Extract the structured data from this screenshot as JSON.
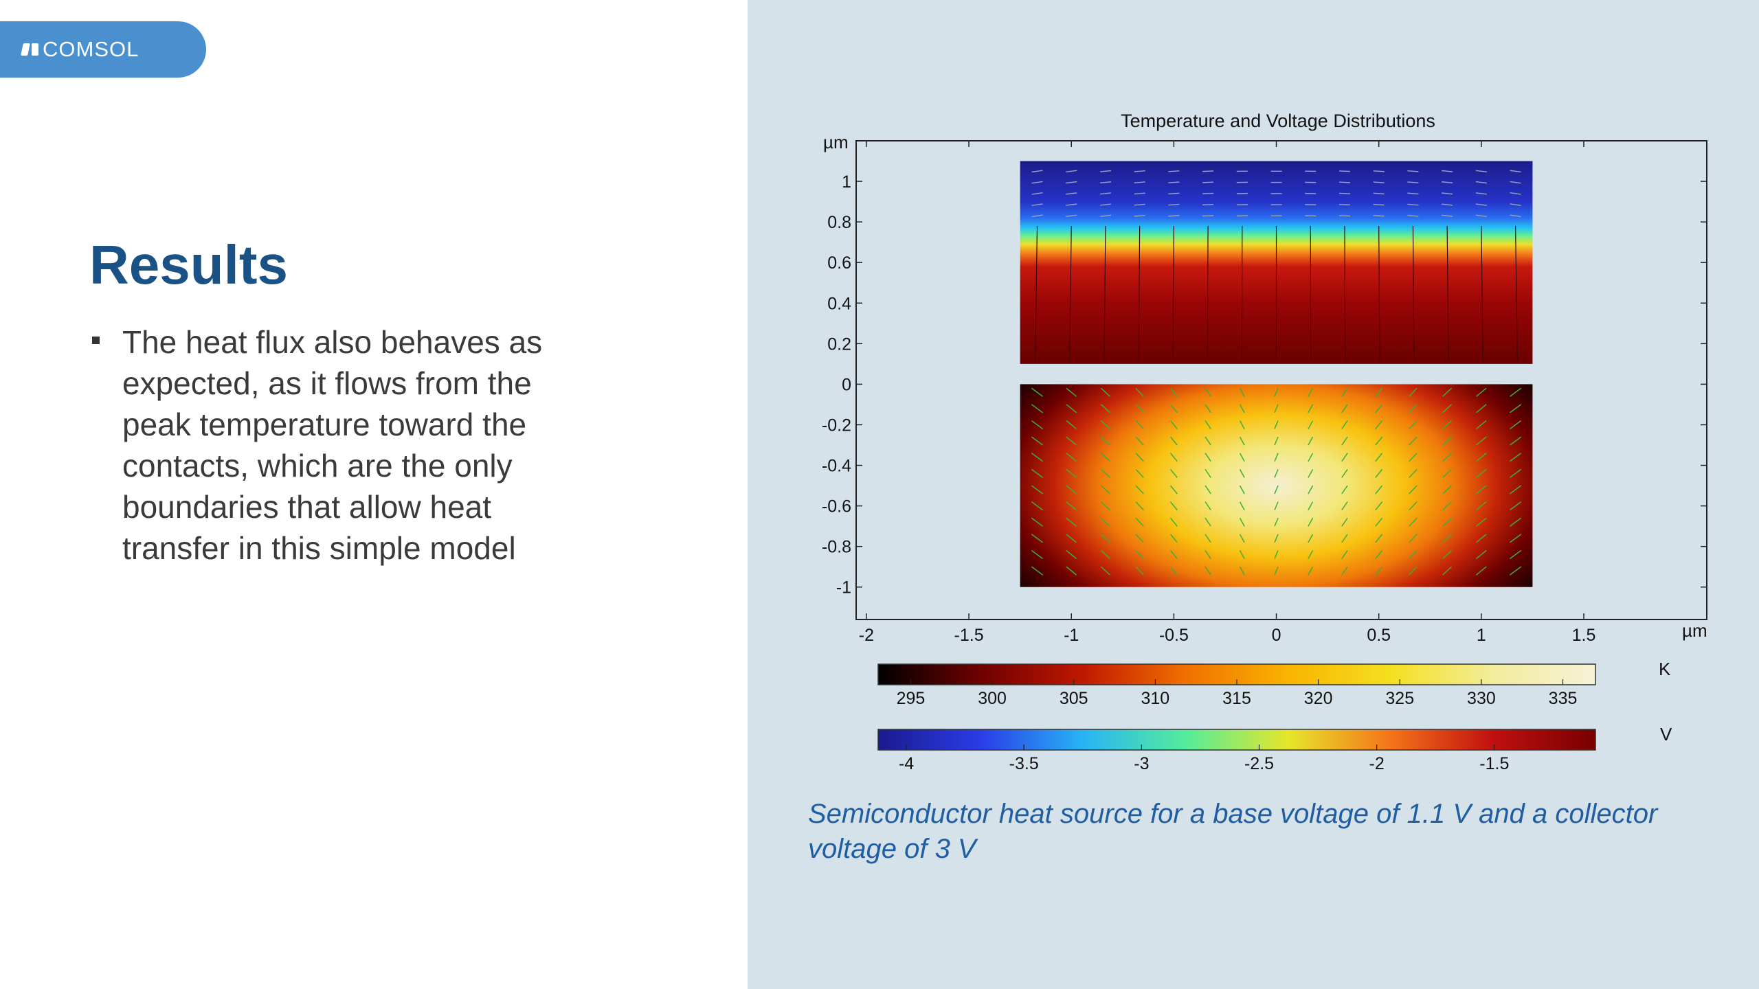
{
  "logo": {
    "text": "COMSOL"
  },
  "slide": {
    "title": "Results",
    "bullets": [
      "The heat flux also behaves as expected, as it flows from the peak temperature toward the contacts, which are the only boundaries that allow heat transfer in this simple model"
    ],
    "caption": "Semiconductor heat source for a base voltage of 1.1 V and a collector voltage of 3 V"
  },
  "plot": {
    "title": "Temperature and Voltage Distributions",
    "x_unit": "µm",
    "y_unit": "µm",
    "x_ticks": [
      "-2",
      "-1.5",
      "-1",
      "-0.5",
      "0",
      "0.5",
      "1",
      "1.5"
    ],
    "y_ticks": [
      "1",
      "0.8",
      "0.6",
      "0.4",
      "0.2",
      "0",
      "-0.2",
      "-0.4",
      "-0.6",
      "-0.8",
      "-1"
    ],
    "xlim": [
      -2.05,
      2.1
    ],
    "ylim": [
      -1.16,
      1.2
    ],
    "upper_domain": {
      "x": [
        -1.25,
        1.25
      ],
      "y": [
        0.1,
        1.1
      ],
      "field": "voltage"
    },
    "lower_domain": {
      "x": [
        -1.25,
        1.25
      ],
      "y": [
        -1.0,
        0.0
      ],
      "field": "temperature"
    },
    "temperature_legend": {
      "unit": "K",
      "ticks": [
        "295",
        "300",
        "305",
        "310",
        "315",
        "320",
        "325",
        "330",
        "335"
      ],
      "tick_values": [
        295,
        300,
        305,
        310,
        315,
        320,
        325,
        330,
        335
      ],
      "range": [
        293,
        337
      ],
      "colors": [
        "#000000",
        "#6e0000",
        "#c01800",
        "#f07000",
        "#f9b400",
        "#f4e020",
        "#f2ec9c",
        "#f6f2d8"
      ]
    },
    "voltage_legend": {
      "unit": "V",
      "ticks": [
        "-4",
        "-3.5",
        "-3",
        "-2.5",
        "-2",
        "-1.5"
      ],
      "tick_values": [
        -4,
        -3.5,
        -3,
        -2.5,
        -2,
        -1.5
      ],
      "range": [
        -4.12,
        -1.07
      ],
      "colors": [
        "#1a1a8e",
        "#2a3ce8",
        "#28b4f4",
        "#54ec9c",
        "#e6e62a",
        "#f4741a",
        "#c01010",
        "#780000"
      ]
    }
  }
}
